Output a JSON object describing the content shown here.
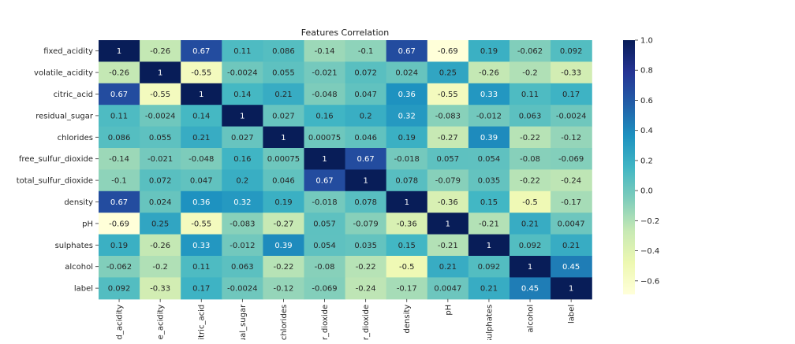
{
  "chart_data": {
    "type": "heatmap",
    "title": "Features Correlation",
    "row_labels": [
      "fixed_acidity",
      "volatile_acidity",
      "citric_acid",
      "residual_sugar",
      "chlorides",
      "free_sulfur_dioxide",
      "total_sulfur_dioxide",
      "density",
      "pH",
      "sulphates",
      "alcohol",
      "label"
    ],
    "col_labels": [
      "ed_acidity",
      "ile_acidity",
      "citric_acid",
      "ual_sugar",
      "chlorides",
      "ur_dioxide",
      "ur_dioxide",
      "density",
      "pH",
      "sulphates",
      "alcohol",
      "label"
    ],
    "values": [
      [
        1,
        -0.26,
        0.67,
        0.11,
        0.086,
        -0.14,
        -0.1,
        0.67,
        -0.69,
        0.19,
        -0.062,
        0.092
      ],
      [
        -0.26,
        1,
        -0.55,
        -0.0024,
        0.055,
        -0.021,
        0.072,
        0.024,
        0.25,
        -0.26,
        -0.2,
        -0.33
      ],
      [
        0.67,
        -0.55,
        1,
        0.14,
        0.21,
        -0.048,
        0.047,
        0.36,
        -0.55,
        0.33,
        0.11,
        0.17
      ],
      [
        0.11,
        -0.0024,
        0.14,
        1,
        0.027,
        0.16,
        0.2,
        0.32,
        -0.083,
        -0.012,
        0.063,
        -0.0024
      ],
      [
        0.086,
        0.055,
        0.21,
        0.027,
        1,
        0.00075,
        0.046,
        0.19,
        -0.27,
        0.39,
        -0.22,
        -0.12
      ],
      [
        -0.14,
        -0.021,
        -0.048,
        0.16,
        0.00075,
        1,
        0.67,
        -0.018,
        0.057,
        0.054,
        -0.08,
        -0.069
      ],
      [
        -0.1,
        0.072,
        0.047,
        0.2,
        0.046,
        0.67,
        1,
        0.078,
        -0.079,
        0.035,
        -0.22,
        -0.24
      ],
      [
        0.67,
        0.024,
        0.36,
        0.32,
        0.19,
        -0.018,
        0.078,
        1,
        -0.36,
        0.15,
        -0.5,
        -0.17
      ],
      [
        -0.69,
        0.25,
        -0.55,
        -0.083,
        -0.27,
        0.057,
        -0.079,
        -0.36,
        1,
        -0.21,
        0.21,
        0.0047
      ],
      [
        0.19,
        -0.26,
        0.33,
        -0.012,
        0.39,
        0.054,
        0.035,
        0.15,
        -0.21,
        1,
        0.092,
        0.21
      ],
      [
        -0.062,
        -0.2,
        0.11,
        0.063,
        -0.22,
        -0.08,
        -0.22,
        -0.5,
        0.21,
        0.092,
        1,
        0.45
      ],
      [
        0.092,
        -0.33,
        0.17,
        -0.0024,
        -0.12,
        -0.069,
        -0.24,
        -0.17,
        0.0047,
        0.21,
        0.45,
        1
      ]
    ],
    "colorbar": {
      "range": [
        -0.69,
        1
      ],
      "ticks": [
        1.0,
        0.8,
        0.6,
        0.4,
        0.2,
        0.0,
        -0.2,
        -0.4,
        -0.6
      ],
      "tick_labels": [
        "1.0",
        "0.8",
        "0.6",
        "0.4",
        "0.2",
        "0.0",
        "−0.2",
        "−0.4",
        "−0.6"
      ],
      "colormap": "YlGnBu",
      "stops": [
        [
          0.0,
          "#ffffd9"
        ],
        [
          0.125,
          "#edf8b1"
        ],
        [
          0.25,
          "#c7e9b4"
        ],
        [
          0.375,
          "#7fcdbb"
        ],
        [
          0.5,
          "#41b6c4"
        ],
        [
          0.625,
          "#1d91c0"
        ],
        [
          0.75,
          "#225ea8"
        ],
        [
          0.875,
          "#253494"
        ],
        [
          1.0,
          "#081d58"
        ]
      ]
    },
    "annotations": true,
    "grid": false
  }
}
